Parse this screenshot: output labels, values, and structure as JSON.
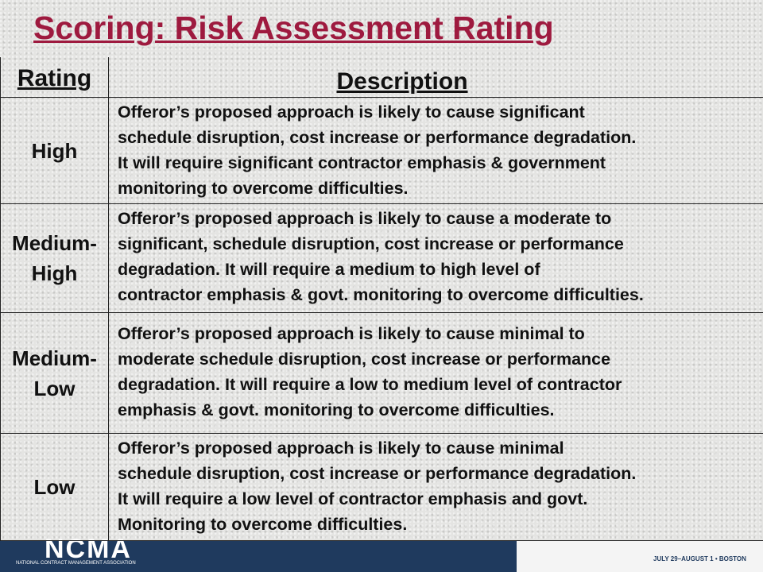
{
  "title": "Scoring: Risk Assessment Rating",
  "table": {
    "header": {
      "rating": "Rating",
      "description": "Description"
    },
    "rows": [
      {
        "rating": [
          "High"
        ],
        "description": [
          "Offeror’s proposed approach is likely to cause significant",
          "schedule disruption, cost increase or performance degradation.",
          "It will require significant contractor emphasis & government",
          "monitoring to overcome difficulties."
        ]
      },
      {
        "rating": [
          "Medium-",
          "High"
        ],
        "description": [
          "Offeror’s proposed approach is likely to cause a moderate to",
          "significant, schedule disruption, cost increase or performance",
          "degradation. It will require a medium to high level of",
          "contractor emphasis & govt. monitoring to overcome difficulties."
        ]
      },
      {
        "rating": [
          "Medium-",
          "Low"
        ],
        "description": [
          "Offeror’s proposed approach is likely to cause minimal to",
          "moderate schedule disruption, cost increase or performance",
          "degradation. It will require a low to medium  level of contractor",
          "emphasis & govt. monitoring to overcome difficulties."
        ]
      },
      {
        "rating": [
          "Low"
        ],
        "description": [
          "Offeror’s proposed approach is likely to cause minimal",
          "schedule disruption, cost increase or performance degradation.",
          "It will require a low level of contractor emphasis and govt.",
          "Monitoring to overcome difficulties."
        ]
      }
    ]
  },
  "footer": {
    "logo": "NCMA",
    "association": "NATIONAL CONTRACT MANAGEMENT ASSOCIATION",
    "dates": "JULY 29–AUGUST 1 • BOSTON"
  }
}
